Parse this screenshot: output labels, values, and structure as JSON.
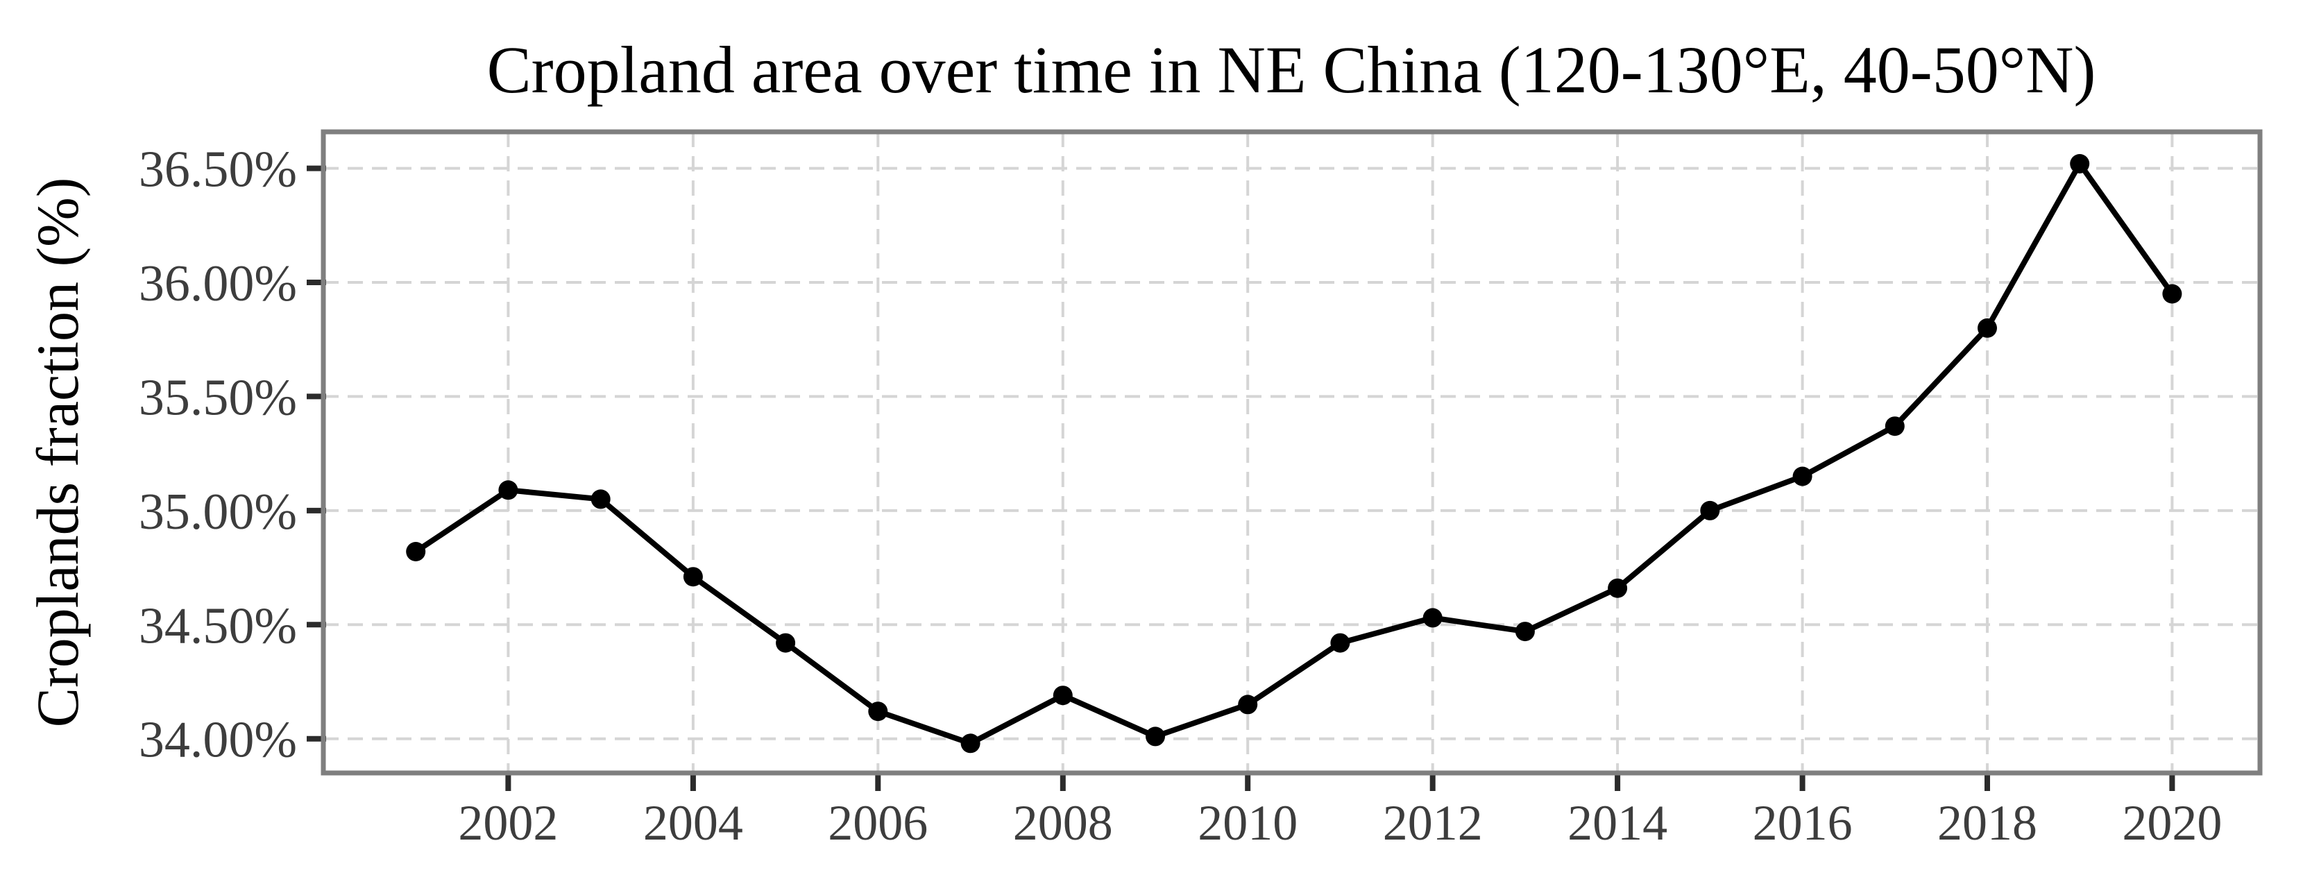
{
  "style": {
    "background": "#ffffff",
    "spine_color": "#7f7f7f",
    "grid_color": "#d5d5d5",
    "tick_mark_color": "#2b2b2b",
    "tick_label_color": "#3d3d3d",
    "text_color": "#000000"
  },
  "chart_data": {
    "type": "line",
    "title": "Cropland area over time in NE China (120-130°E, 40-50°N)",
    "ylabel": "Croplands fraction (%)",
    "xlabel": "",
    "x": [
      2001,
      2002,
      2003,
      2004,
      2005,
      2006,
      2007,
      2008,
      2009,
      2010,
      2011,
      2012,
      2013,
      2014,
      2015,
      2016,
      2017,
      2018,
      2019,
      2020
    ],
    "values": [
      34.82,
      35.09,
      35.05,
      34.71,
      34.42,
      34.12,
      33.98,
      34.19,
      34.01,
      34.15,
      34.42,
      34.53,
      34.47,
      34.66,
      35.0,
      35.15,
      35.37,
      35.8,
      36.52,
      35.95
    ],
    "xlim": [
      2000.0,
      2020.95
    ],
    "ylim": [
      33.85,
      36.66
    ],
    "x_ticks": [
      2002,
      2004,
      2006,
      2008,
      2010,
      2012,
      2014,
      2016,
      2018,
      2020
    ],
    "x_tick_labels": [
      "2002",
      "2004",
      "2006",
      "2008",
      "2010",
      "2012",
      "2014",
      "2016",
      "2018",
      "2020"
    ],
    "y_ticks": [
      34.0,
      34.5,
      35.0,
      35.5,
      36.0,
      36.5
    ],
    "y_tick_labels": [
      "34.00%",
      "34.50%",
      "35.00%",
      "35.50%",
      "36.00%",
      "36.50%"
    ],
    "grid": true,
    "grid_style": "dashed",
    "legend": false,
    "marker": "circle",
    "line_color": "#000000"
  }
}
